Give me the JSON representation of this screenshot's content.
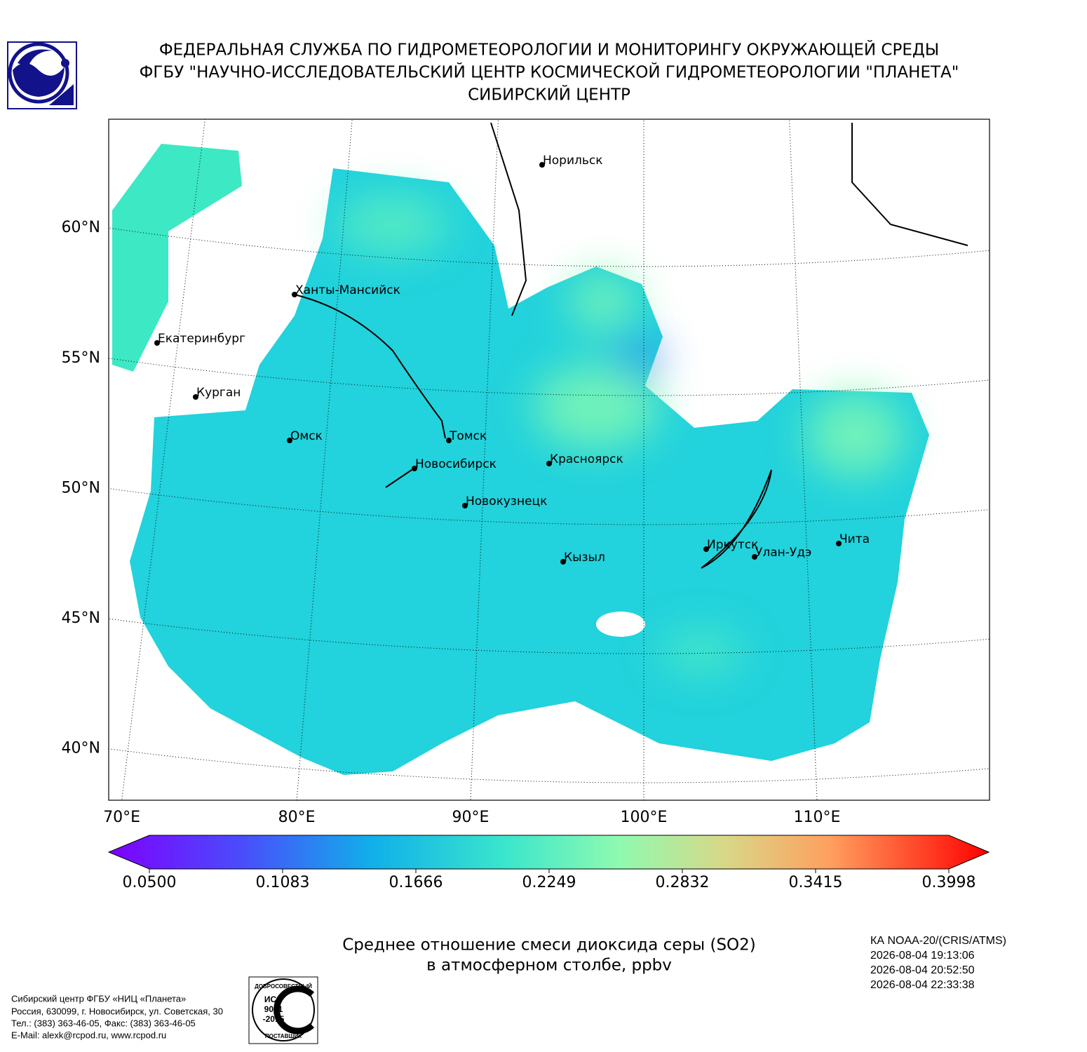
{
  "header": {
    "lines": [
      "ФЕДЕРАЛЬНАЯ СЛУЖБА ПО ГИДРОМЕТЕОРОЛОГИИ И МОНИТОРИНГУ ОКРУЖАЮЩЕЙ СРЕДЫ",
      "ФГБУ \"НАУЧНО-ИССЛЕДОВАТЕЛЬСКИЙ ЦЕНТР КОСМИЧЕСКОЙ ГИДРОМЕТЕОРОЛОГИИ \"ПЛАНЕТА\"",
      "СИБИРСКИЙ ЦЕНТР"
    ]
  },
  "map": {
    "lat_labels": [
      {
        "value": 60,
        "label": "60°N"
      },
      {
        "value": 55,
        "label": "55°N"
      },
      {
        "value": 50,
        "label": "50°N"
      },
      {
        "value": 45,
        "label": "45°N"
      },
      {
        "value": 40,
        "label": "40°N"
      }
    ],
    "lon_labels": [
      {
        "value": 70,
        "label": "70°E"
      },
      {
        "value": 80,
        "label": "80°E"
      },
      {
        "value": 90,
        "label": "90°E"
      },
      {
        "value": 100,
        "label": "100°E"
      },
      {
        "value": 110,
        "label": "110°E"
      }
    ],
    "cities": [
      "Норильск",
      "Ханты-Мансийск",
      "Екатеринбург",
      "Курган",
      "Омск",
      "Томск",
      "Новосибирск",
      "Красноярск",
      "Новокузнецк",
      "Кызыл",
      "Иркутск",
      "Улан-Удэ",
      "Чита"
    ]
  },
  "colorbar": {
    "ticks": [
      {
        "value": 0.05,
        "label": "0.0500"
      },
      {
        "value": 0.1083,
        "label": "0.1083"
      },
      {
        "value": 0.1666,
        "label": "0.1666"
      },
      {
        "value": 0.2249,
        "label": "0.2249"
      },
      {
        "value": 0.2832,
        "label": "0.2832"
      },
      {
        "value": 0.3415,
        "label": "0.3415"
      },
      {
        "value": 0.3998,
        "label": "0.3998"
      }
    ]
  },
  "caption": {
    "lines": [
      "Среднее отношение смеси диоксида серы (SO2)",
      "в атмосферном столбе, ppbv"
    ]
  },
  "satellite": {
    "lines": [
      "КА NOAA-20/(CRIS/ATMS)",
      "2026-08-04 19:13:06",
      "2026-08-04 20:52:50",
      "2026-08-04 22:33:38"
    ]
  },
  "footer": {
    "lines": [
      "Сибирский центр ФГБУ «НИЦ «Планета»",
      "Россия, 630099, г. Новосибирск, ул. Советская, 30",
      "Тел.: (383) 363-46-05, Факс: (383) 363-46-05",
      "E-Mail: alexk@rcpod.ru, www.rcpod.ru"
    ]
  },
  "iso_logo": {
    "top": "ДОБРОСОВЕСТНЫЙ",
    "lines": [
      "ИСО",
      "9001",
      "-2015"
    ],
    "bottom": "ПОСТАВЩИК"
  }
}
